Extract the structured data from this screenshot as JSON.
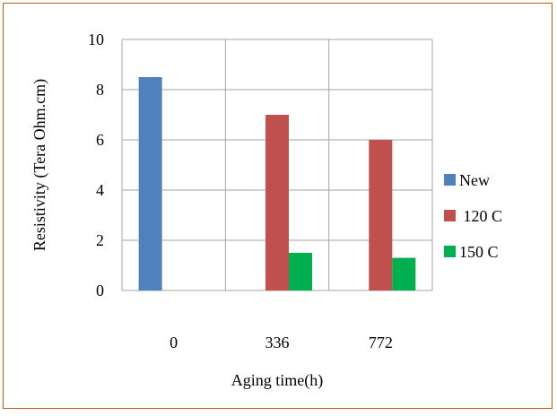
{
  "chart_data": {
    "type": "bar",
    "categories": [
      "0",
      "336",
      "772"
    ],
    "series": [
      {
        "name": "New",
        "values": [
          8.5,
          null,
          null
        ],
        "color": "#4f81bd"
      },
      {
        "name": " 120 C",
        "values": [
          null,
          7.0,
          6.0
        ],
        "color": "#c0504d"
      },
      {
        "name": "150 C",
        "values": [
          null,
          1.5,
          1.3
        ],
        "color": "#00b050"
      }
    ],
    "title": "",
    "xlabel": "Aging time(h)",
    "ylabel": "Resistivity (Tera  Ohm.cm)",
    "ylim": [
      0,
      10
    ],
    "yticks": [
      "0",
      "2",
      "4",
      "6",
      "8",
      "10"
    ],
    "grid": true,
    "legend_position": "right"
  },
  "colors": {
    "border": "#c55a11",
    "grid": "#a6a6a6"
  }
}
